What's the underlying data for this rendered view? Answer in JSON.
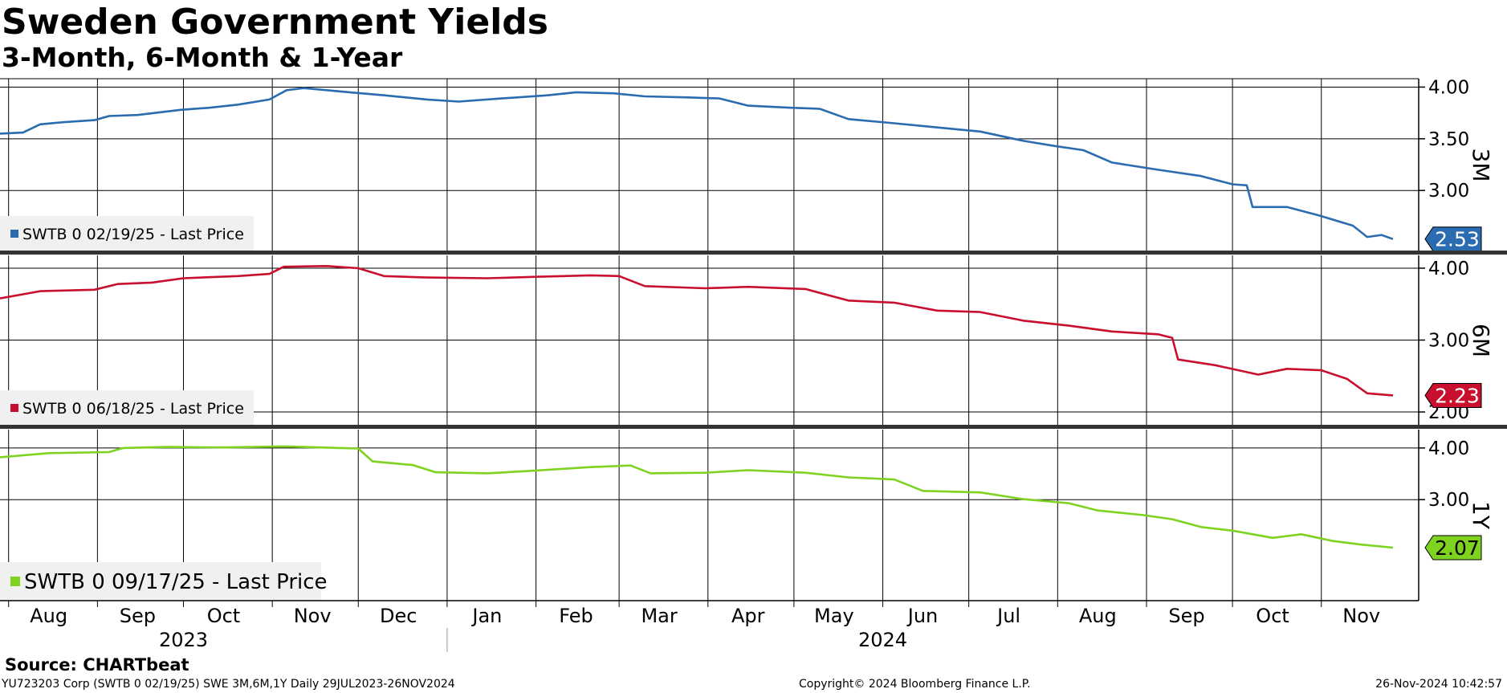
{
  "title": "Sweden Government Yields",
  "subtitle": "3-Month, 6-Month & 1-Year",
  "source": "Source:  CHARTbeat",
  "footer": {
    "left": "YU723203 Corp (SWTB 0 02/19/25) SWE 3M,6M,1Y  Daily 29JUL2023-26NOV2024",
    "center": "Copyright© 2024 Bloomberg Finance L.P.",
    "right": "26-Nov-2024 10:42:57"
  },
  "colors": {
    "series_3m": "#2b6cb0",
    "series_6m": "#c8102e",
    "series_1y": "#7ed321",
    "grid": "#000000",
    "legend_bg": "#f0f0f0"
  },
  "chart_data": {
    "type": "line",
    "x_range": [
      "2023-07-29",
      "2024-11-26"
    ],
    "x_ticks": [
      "Aug",
      "Sep",
      "Oct",
      "Nov",
      "Dec",
      "Jan",
      "Feb",
      "Mar",
      "Apr",
      "May",
      "Jun",
      "Jul",
      "Aug",
      "Sep",
      "Oct",
      "Nov"
    ],
    "x_tick_dates": [
      "2023-08-15",
      "2023-09-15",
      "2023-10-15",
      "2023-11-15",
      "2023-12-15",
      "2024-01-15",
      "2024-02-15",
      "2024-03-15",
      "2024-04-15",
      "2024-05-15",
      "2024-06-15",
      "2024-07-15",
      "2024-08-15",
      "2024-09-15",
      "2024-10-15",
      "2024-11-15"
    ],
    "year_labels": [
      "2023",
      "2024"
    ],
    "panels": [
      {
        "id": "3m",
        "axis_label": "3M",
        "legend": "SWTB 0 02/19/25 - Last Price",
        "last_value": "2.53",
        "y_ticks": [
          "4.00",
          "3.50",
          "3.00"
        ],
        "ylim": [
          2.45,
          4.05
        ],
        "series": {
          "name": "SWTB 0 02/19/25 - Last Price",
          "points": [
            [
              "2023-07-29",
              3.55
            ],
            [
              "2023-08-06",
              3.56
            ],
            [
              "2023-08-12",
              3.64
            ],
            [
              "2023-08-20",
              3.66
            ],
            [
              "2023-08-31",
              3.68
            ],
            [
              "2023-09-05",
              3.72
            ],
            [
              "2023-09-15",
              3.73
            ],
            [
              "2023-09-30",
              3.78
            ],
            [
              "2023-10-10",
              3.8
            ],
            [
              "2023-10-20",
              3.83
            ],
            [
              "2023-10-31",
              3.88
            ],
            [
              "2023-11-06",
              3.97
            ],
            [
              "2023-11-12",
              3.99
            ],
            [
              "2023-11-20",
              3.97
            ],
            [
              "2023-11-28",
              3.95
            ],
            [
              "2023-12-10",
              3.92
            ],
            [
              "2023-12-25",
              3.88
            ],
            [
              "2024-01-05",
              3.86
            ],
            [
              "2024-01-20",
              3.89
            ],
            [
              "2024-02-05",
              3.92
            ],
            [
              "2024-02-15",
              3.95
            ],
            [
              "2024-02-28",
              3.94
            ],
            [
              "2024-03-10",
              3.91
            ],
            [
              "2024-03-25",
              3.9
            ],
            [
              "2024-04-05",
              3.89
            ],
            [
              "2024-04-15",
              3.82
            ],
            [
              "2024-04-30",
              3.8
            ],
            [
              "2024-05-10",
              3.79
            ],
            [
              "2024-05-20",
              3.69
            ],
            [
              "2024-06-05",
              3.65
            ],
            [
              "2024-06-20",
              3.61
            ],
            [
              "2024-07-05",
              3.57
            ],
            [
              "2024-07-20",
              3.48
            ],
            [
              "2024-07-31",
              3.43
            ],
            [
              "2024-08-10",
              3.39
            ],
            [
              "2024-08-20",
              3.27
            ],
            [
              "2024-09-05",
              3.2
            ],
            [
              "2024-09-20",
              3.14
            ],
            [
              "2024-10-01",
              3.06
            ],
            [
              "2024-10-06",
              3.05
            ],
            [
              "2024-10-08",
              2.84
            ],
            [
              "2024-10-20",
              2.84
            ],
            [
              "2024-10-31",
              2.76
            ],
            [
              "2024-11-12",
              2.66
            ],
            [
              "2024-11-17",
              2.55
            ],
            [
              "2024-11-22",
              2.57
            ],
            [
              "2024-11-26",
              2.53
            ]
          ]
        }
      },
      {
        "id": "6m",
        "axis_label": "6M",
        "legend": "SWTB 0 06/18/25 - Last Price",
        "last_value": "2.23",
        "y_ticks": [
          "4.00",
          "3.00",
          "2.00"
        ],
        "ylim": [
          1.9,
          4.1
        ],
        "series": {
          "name": "SWTB 0 06/18/25 - Last Price",
          "points": [
            [
              "2023-07-29",
              3.58
            ],
            [
              "2023-08-12",
              3.68
            ],
            [
              "2023-08-31",
              3.7
            ],
            [
              "2023-09-08",
              3.78
            ],
            [
              "2023-09-20",
              3.8
            ],
            [
              "2023-10-01",
              3.86
            ],
            [
              "2023-10-20",
              3.89
            ],
            [
              "2023-10-31",
              3.92
            ],
            [
              "2023-11-05",
              4.02
            ],
            [
              "2023-11-20",
              4.03
            ],
            [
              "2023-12-01",
              4.0
            ],
            [
              "2023-12-10",
              3.89
            ],
            [
              "2023-12-25",
              3.87
            ],
            [
              "2024-01-15",
              3.86
            ],
            [
              "2024-02-01",
              3.88
            ],
            [
              "2024-02-20",
              3.9
            ],
            [
              "2024-03-01",
              3.89
            ],
            [
              "2024-03-10",
              3.75
            ],
            [
              "2024-03-31",
              3.72
            ],
            [
              "2024-04-15",
              3.74
            ],
            [
              "2024-05-05",
              3.71
            ],
            [
              "2024-05-20",
              3.55
            ],
            [
              "2024-06-05",
              3.52
            ],
            [
              "2024-06-20",
              3.41
            ],
            [
              "2024-07-05",
              3.39
            ],
            [
              "2024-07-20",
              3.27
            ],
            [
              "2024-08-05",
              3.2
            ],
            [
              "2024-08-20",
              3.12
            ],
            [
              "2024-09-05",
              3.08
            ],
            [
              "2024-09-10",
              3.03
            ],
            [
              "2024-09-12",
              2.73
            ],
            [
              "2024-09-25",
              2.65
            ],
            [
              "2024-10-10",
              2.52
            ],
            [
              "2024-10-20",
              2.6
            ],
            [
              "2024-11-01",
              2.58
            ],
            [
              "2024-11-10",
              2.46
            ],
            [
              "2024-11-17",
              2.26
            ],
            [
              "2024-11-26",
              2.23
            ]
          ]
        }
      },
      {
        "id": "1y",
        "axis_label": "1Y",
        "legend": "SWTB 0 09/17/25 - Last Price",
        "last_value": "2.07",
        "y_ticks": [
          "4.00",
          "3.00"
        ],
        "ylim": [
          1.2,
          4.2
        ],
        "series": {
          "name": "SWTB 0 09/17/25 - Last Price",
          "points": [
            [
              "2023-07-29",
              3.82
            ],
            [
              "2023-08-15",
              3.9
            ],
            [
              "2023-09-05",
              3.92
            ],
            [
              "2023-09-10",
              4.0
            ],
            [
              "2023-09-25",
              4.02
            ],
            [
              "2023-10-15",
              4.01
            ],
            [
              "2023-11-05",
              4.03
            ],
            [
              "2023-11-25",
              4.0
            ],
            [
              "2023-12-01",
              3.99
            ],
            [
              "2023-12-06",
              3.74
            ],
            [
              "2023-12-20",
              3.67
            ],
            [
              "2023-12-28",
              3.53
            ],
            [
              "2024-01-15",
              3.51
            ],
            [
              "2024-01-31",
              3.56
            ],
            [
              "2024-02-20",
              3.63
            ],
            [
              "2024-03-05",
              3.66
            ],
            [
              "2024-03-12",
              3.51
            ],
            [
              "2024-03-31",
              3.52
            ],
            [
              "2024-04-15",
              3.57
            ],
            [
              "2024-05-05",
              3.52
            ],
            [
              "2024-05-20",
              3.43
            ],
            [
              "2024-06-05",
              3.39
            ],
            [
              "2024-06-15",
              3.17
            ],
            [
              "2024-07-05",
              3.14
            ],
            [
              "2024-07-20",
              3.01
            ],
            [
              "2024-08-05",
              2.93
            ],
            [
              "2024-08-15",
              2.79
            ],
            [
              "2024-08-31",
              2.7
            ],
            [
              "2024-09-10",
              2.62
            ],
            [
              "2024-09-20",
              2.47
            ],
            [
              "2024-10-01",
              2.4
            ],
            [
              "2024-10-15",
              2.26
            ],
            [
              "2024-10-25",
              2.33
            ],
            [
              "2024-11-05",
              2.2
            ],
            [
              "2024-11-15",
              2.13
            ],
            [
              "2024-11-26",
              2.07
            ]
          ]
        }
      }
    ]
  }
}
